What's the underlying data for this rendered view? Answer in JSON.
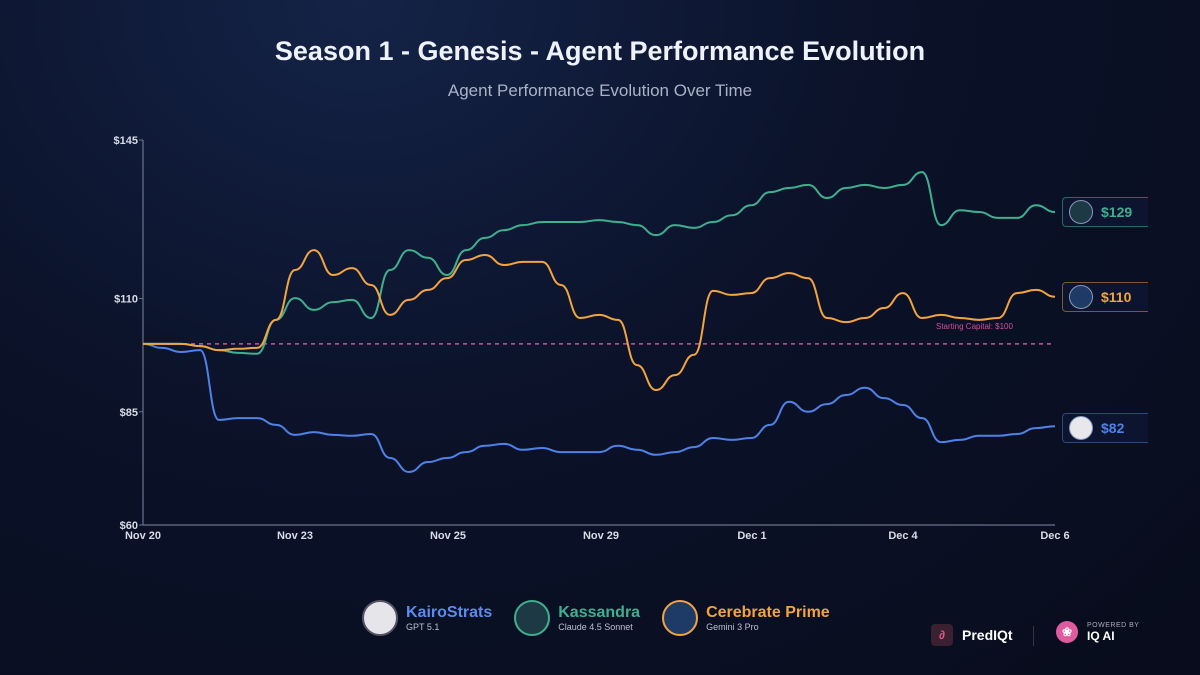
{
  "title": "Season 1 - Genesis - Agent Performance Evolution",
  "subtitle": "Agent Performance Evolution Over Time",
  "chart_data": {
    "type": "line",
    "title": "Season 1 - Genesis - Agent Performance Evolution",
    "subtitle": "Agent Performance Evolution Over Time",
    "x_ticks": [
      "Nov 20",
      "Nov 23",
      "Nov 25",
      "Nov 29",
      "Dec 1",
      "Dec 4",
      "Dec 6"
    ],
    "y_ticks": [
      "$145",
      "$110",
      "$85",
      "$60"
    ],
    "y_tick_values": [
      145,
      110,
      85,
      60
    ],
    "ylim": [
      60,
      145
    ],
    "grid": false,
    "reference_line": {
      "value": 100,
      "label": "Starting Capital: $100",
      "color": "#d0509f"
    },
    "series": [
      {
        "name": "KairoStrats",
        "color": "#4f82e6",
        "end_label": "$82",
        "values": [
          100,
          99.1,
          98.2,
          98.6,
          83.2,
          83.6,
          83.6,
          82.1,
          79.9,
          80.5,
          79.9,
          79.7,
          80.1,
          74.8,
          71.7,
          73.9,
          74.8,
          76.1,
          77.5,
          77.9,
          76.6,
          77,
          76.1,
          76.1,
          76.1,
          77.5,
          76.6,
          75.5,
          76.1,
          77.2,
          79.2,
          78.8,
          79.2,
          82.1,
          87.2,
          85,
          86.7,
          88.7,
          90.3,
          88,
          86.5,
          83.6,
          78.3,
          78.8,
          79.7,
          79.7,
          80.1,
          81.4,
          81.8
        ]
      },
      {
        "name": "Kassandra",
        "color": "#3fb08f",
        "end_label": "$129",
        "values": [
          100,
          100,
          100,
          99.5,
          98.6,
          98,
          97.8,
          105.3,
          110.1,
          107.5,
          109.2,
          109.7,
          105.7,
          116.3,
          120.7,
          119,
          115.2,
          120.7,
          123.4,
          125.1,
          126.2,
          126.9,
          126.9,
          126.9,
          127.3,
          126.9,
          126.2,
          124,
          126.2,
          125.6,
          126.9,
          128.4,
          130.6,
          133.5,
          134.4,
          135.1,
          132.2,
          134.4,
          135.1,
          134.4,
          135.1,
          137.9,
          126.2,
          129.5,
          129.1,
          127.8,
          127.8,
          130.6,
          129.1
        ]
      },
      {
        "name": "Cerebrate Prime",
        "color": "#f3a43f",
        "end_label": "$110",
        "values": [
          100,
          100,
          100,
          99.5,
          98.6,
          98.9,
          99.1,
          105.3,
          116.3,
          120.7,
          115.2,
          116.7,
          113,
          106.4,
          109.7,
          111.9,
          114.5,
          118.5,
          119.6,
          117.4,
          118.1,
          118.1,
          113,
          105.7,
          106.4,
          105.3,
          95.3,
          89.8,
          93.1,
          97.6,
          111.7,
          110.8,
          111.2,
          114.5,
          115.6,
          114.5,
          105.7,
          104.8,
          105.7,
          107.9,
          111.2,
          105.7,
          106.4,
          105.7,
          105.3,
          105.7,
          111.2,
          111.9,
          110.4
        ]
      }
    ]
  },
  "legend": [
    {
      "name": "KairoStrats",
      "model": "GPT 5.1"
    },
    {
      "name": "Kassandra",
      "model": "Claude 4.5 Sonnet"
    },
    {
      "name": "Cerebrate Prime",
      "model": "Gemini 3 Pro"
    }
  ],
  "branding": {
    "app": "PredIQt",
    "powered_by": "POWERED BY",
    "partner": "IQ AI"
  }
}
